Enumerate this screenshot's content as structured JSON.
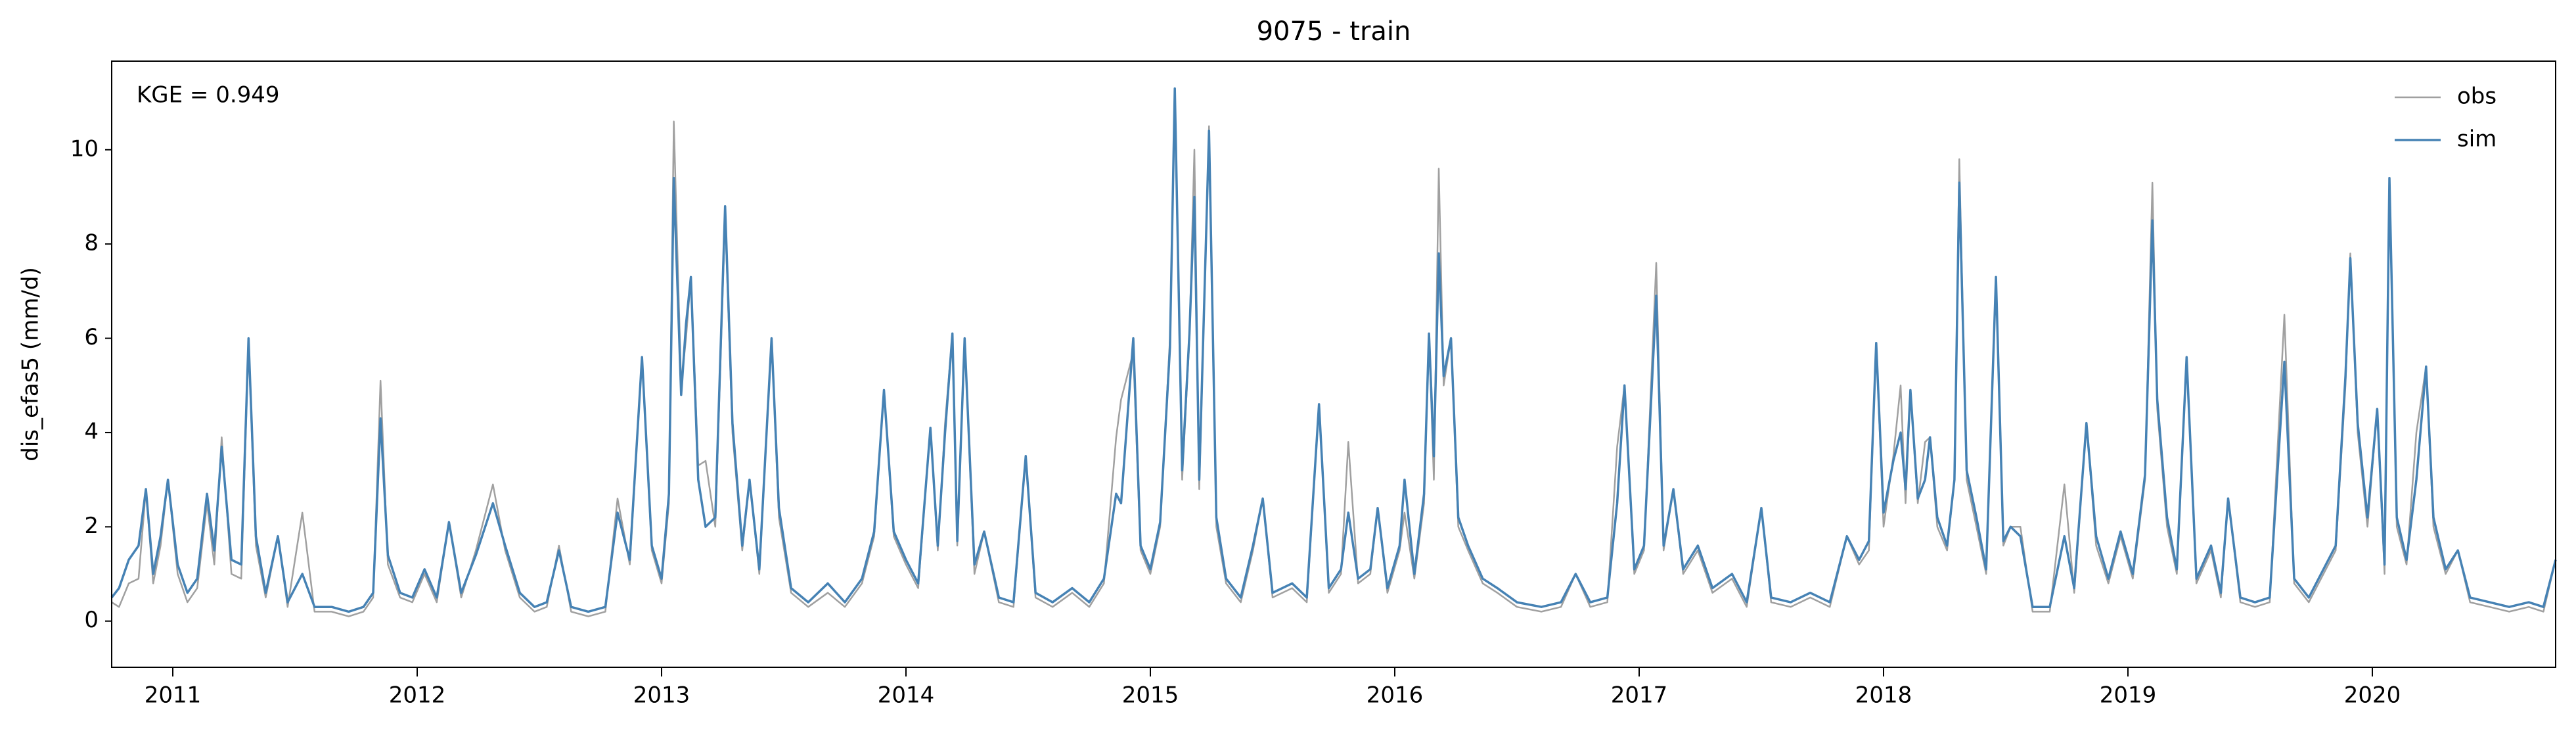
{
  "chart_data": {
    "type": "line",
    "title": "9075 - train",
    "ylabel": "dis_efas5 (mm/d)",
    "annotation": "KGE = 0.949",
    "legend": "upper right",
    "grid": false,
    "xlim": [
      2010.75,
      2020.75
    ],
    "xticks": [
      2011,
      2012,
      2013,
      2014,
      2015,
      2016,
      2017,
      2018,
      2019,
      2020
    ],
    "ylim": [
      -0.98,
      11.88
    ],
    "yticks": [
      0,
      2,
      4,
      6,
      8,
      10
    ],
    "x": [
      2010.75,
      2010.78,
      2010.82,
      2010.86,
      2010.89,
      2010.92,
      2010.95,
      2010.98,
      2011.02,
      2011.06,
      2011.1,
      2011.14,
      2011.17,
      2011.2,
      2011.24,
      2011.28,
      2011.31,
      2011.34,
      2011.38,
      2011.43,
      2011.47,
      2011.53,
      2011.58,
      2011.65,
      2011.72,
      2011.78,
      2011.82,
      2011.85,
      2011.88,
      2011.93,
      2011.98,
      2012.03,
      2012.08,
      2012.13,
      2012.18,
      2012.24,
      2012.31,
      2012.36,
      2012.42,
      2012.48,
      2012.53,
      2012.58,
      2012.63,
      2012.7,
      2012.77,
      2012.82,
      2012.87,
      2012.92,
      2012.96,
      2013.0,
      2013.03,
      2013.05,
      2013.08,
      2013.1,
      2013.12,
      2013.15,
      2013.18,
      2013.22,
      2013.26,
      2013.29,
      2013.33,
      2013.36,
      2013.4,
      2013.45,
      2013.48,
      2013.53,
      2013.6,
      2013.68,
      2013.75,
      2013.82,
      2013.87,
      2013.91,
      2013.95,
      2014.0,
      2014.05,
      2014.1,
      2014.13,
      2014.16,
      2014.19,
      2014.21,
      2014.24,
      2014.28,
      2014.32,
      2014.38,
      2014.44,
      2014.49,
      2014.53,
      2014.6,
      2014.68,
      2014.75,
      2014.81,
      2014.86,
      2014.88,
      2014.93,
      2014.96,
      2015.0,
      2015.04,
      2015.08,
      2015.1,
      2015.13,
      2015.16,
      2015.18,
      2015.2,
      2015.24,
      2015.27,
      2015.31,
      2015.37,
      2015.42,
      2015.46,
      2015.5,
      2015.58,
      2015.64,
      2015.69,
      2015.73,
      2015.78,
      2015.81,
      2015.85,
      2015.9,
      2015.93,
      2015.97,
      2016.02,
      2016.04,
      2016.08,
      2016.12,
      2016.14,
      2016.16,
      2016.18,
      2016.2,
      2016.23,
      2016.26,
      2016.3,
      2016.36,
      2016.42,
      2016.5,
      2016.6,
      2016.68,
      2016.74,
      2016.8,
      2016.87,
      2016.91,
      2016.94,
      2016.98,
      2017.02,
      2017.07,
      2017.1,
      2017.14,
      2017.18,
      2017.24,
      2017.3,
      2017.38,
      2017.44,
      2017.5,
      2017.54,
      2017.62,
      2017.7,
      2017.78,
      2017.85,
      2017.9,
      2017.94,
      2017.97,
      2018.0,
      2018.04,
      2018.07,
      2018.09,
      2018.11,
      2018.14,
      2018.17,
      2018.19,
      2018.22,
      2018.26,
      2018.29,
      2018.31,
      2018.34,
      2018.38,
      2018.42,
      2018.46,
      2018.49,
      2018.52,
      2018.56,
      2018.61,
      2018.68,
      2018.74,
      2018.78,
      2018.83,
      2018.87,
      2018.92,
      2018.97,
      2019.02,
      2019.07,
      2019.1,
      2019.12,
      2019.16,
      2019.2,
      2019.24,
      2019.28,
      2019.34,
      2019.38,
      2019.41,
      2019.46,
      2019.52,
      2019.58,
      2019.64,
      2019.68,
      2019.74,
      2019.8,
      2019.85,
      2019.89,
      2019.91,
      2019.94,
      2019.98,
      2020.02,
      2020.05,
      2020.07,
      2020.1,
      2020.14,
      2020.18,
      2020.22,
      2020.25,
      2020.3,
      2020.35,
      2020.4,
      2020.48,
      2020.56,
      2020.64,
      2020.7,
      2020.75
    ],
    "series": [
      {
        "name": "obs",
        "color": "#a0a0a0",
        "values": [
          0.4,
          0.3,
          0.8,
          0.9,
          2.8,
          0.8,
          1.6,
          3.0,
          1.0,
          0.4,
          0.7,
          2.5,
          1.2,
          3.9,
          1.0,
          0.9,
          5.9,
          1.6,
          0.5,
          1.8,
          0.3,
          2.3,
          0.2,
          0.2,
          0.1,
          0.2,
          0.5,
          5.1,
          1.2,
          0.5,
          0.4,
          1.0,
          0.4,
          2.1,
          0.5,
          1.5,
          2.9,
          1.5,
          0.5,
          0.2,
          0.3,
          1.6,
          0.2,
          0.1,
          0.2,
          2.6,
          1.2,
          5.6,
          1.5,
          0.8,
          2.5,
          10.6,
          5.0,
          6.0,
          7.3,
          3.3,
          3.4,
          2.0,
          8.6,
          4.0,
          1.5,
          3.0,
          1.0,
          6.0,
          2.2,
          0.6,
          0.3,
          0.6,
          0.3,
          0.8,
          1.8,
          4.9,
          1.8,
          1.2,
          0.7,
          4.1,
          1.5,
          4.2,
          6.1,
          1.6,
          6.0,
          1.0,
          1.9,
          0.4,
          0.3,
          3.5,
          0.5,
          0.3,
          0.6,
          0.3,
          0.8,
          3.9,
          4.7,
          5.7,
          1.5,
          1.0,
          2.0,
          6.0,
          11.2,
          3.0,
          6.0,
          10.0,
          2.8,
          10.5,
          2.0,
          0.8,
          0.4,
          1.5,
          2.6,
          0.5,
          0.7,
          0.4,
          4.6,
          0.6,
          1.0,
          3.8,
          0.8,
          1.0,
          2.4,
          0.6,
          1.5,
          2.3,
          0.9,
          2.5,
          6.1,
          3.0,
          9.6,
          5.0,
          6.0,
          2.0,
          1.5,
          0.8,
          0.6,
          0.3,
          0.2,
          0.3,
          1.0,
          0.3,
          0.4,
          3.7,
          5.0,
          1.0,
          1.5,
          7.6,
          1.5,
          2.8,
          1.0,
          1.5,
          0.6,
          0.9,
          0.3,
          2.4,
          0.4,
          0.3,
          0.5,
          0.3,
          1.8,
          1.2,
          1.5,
          5.9,
          2.0,
          3.5,
          5.0,
          2.5,
          4.9,
          2.5,
          3.8,
          3.9,
          2.0,
          1.5,
          3.0,
          9.8,
          3.0,
          2.0,
          1.0,
          7.3,
          1.6,
          2.0,
          2.0,
          0.2,
          0.2,
          2.9,
          0.6,
          4.2,
          1.6,
          0.8,
          1.8,
          0.9,
          3.0,
          9.3,
          4.5,
          2.0,
          1.0,
          5.6,
          0.8,
          1.5,
          0.5,
          2.6,
          0.4,
          0.3,
          0.4,
          6.5,
          0.8,
          0.4,
          1.0,
          1.5,
          5.0,
          7.8,
          4.0,
          2.0,
          4.5,
          1.0,
          9.4,
          2.0,
          1.2,
          4.0,
          5.4,
          2.0,
          1.0,
          1.5,
          0.4,
          0.3,
          0.2,
          0.3,
          0.2,
          1.3
        ]
      },
      {
        "name": "sim",
        "color": "#4682b4",
        "values": [
          0.5,
          0.7,
          1.3,
          1.6,
          2.8,
          1.0,
          1.8,
          3.0,
          1.2,
          0.6,
          0.9,
          2.7,
          1.5,
          3.7,
          1.3,
          1.2,
          6.0,
          1.8,
          0.6,
          1.8,
          0.4,
          1.0,
          0.3,
          0.3,
          0.2,
          0.3,
          0.6,
          4.3,
          1.4,
          0.6,
          0.5,
          1.1,
          0.5,
          2.1,
          0.6,
          1.4,
          2.5,
          1.6,
          0.6,
          0.3,
          0.4,
          1.5,
          0.3,
          0.2,
          0.3,
          2.3,
          1.3,
          5.6,
          1.6,
          0.9,
          2.7,
          9.4,
          4.8,
          6.3,
          7.3,
          3.0,
          2.0,
          2.2,
          8.8,
          4.2,
          1.6,
          3.0,
          1.1,
          6.0,
          2.4,
          0.7,
          0.4,
          0.8,
          0.4,
          0.9,
          1.9,
          4.9,
          1.9,
          1.3,
          0.8,
          4.1,
          1.6,
          4.0,
          6.1,
          1.7,
          6.0,
          1.2,
          1.9,
          0.5,
          0.4,
          3.5,
          0.6,
          0.4,
          0.7,
          0.4,
          0.9,
          2.7,
          2.5,
          6.0,
          1.6,
          1.1,
          2.1,
          5.8,
          11.3,
          3.2,
          6.1,
          9.0,
          3.0,
          10.4,
          2.2,
          0.9,
          0.5,
          1.6,
          2.6,
          0.6,
          0.8,
          0.5,
          4.6,
          0.7,
          1.1,
          2.3,
          0.9,
          1.1,
          2.4,
          0.7,
          1.6,
          3.0,
          1.0,
          2.7,
          6.1,
          3.5,
          7.8,
          5.2,
          6.0,
          2.2,
          1.6,
          0.9,
          0.7,
          0.4,
          0.3,
          0.4,
          1.0,
          0.4,
          0.5,
          2.5,
          5.0,
          1.1,
          1.6,
          6.9,
          1.6,
          2.8,
          1.1,
          1.6,
          0.7,
          1.0,
          0.4,
          2.4,
          0.5,
          0.4,
          0.6,
          0.4,
          1.8,
          1.3,
          1.7,
          5.9,
          2.3,
          3.4,
          4.0,
          2.8,
          4.9,
          2.6,
          3.0,
          3.9,
          2.2,
          1.6,
          3.0,
          9.3,
          3.2,
          2.2,
          1.1,
          7.3,
          1.7,
          2.0,
          1.8,
          0.3,
          0.3,
          1.8,
          0.7,
          4.2,
          1.8,
          0.9,
          1.9,
          1.0,
          3.1,
          8.5,
          4.7,
          2.2,
          1.1,
          5.6,
          0.9,
          1.6,
          0.6,
          2.6,
          0.5,
          0.4,
          0.5,
          5.5,
          0.9,
          0.5,
          1.1,
          1.6,
          5.2,
          7.7,
          4.2,
          2.2,
          4.5,
          1.2,
          9.4,
          2.2,
          1.3,
          3.0,
          5.4,
          2.2,
          1.1,
          1.5,
          0.5,
          0.4,
          0.3,
          0.4,
          0.3,
          1.3
        ]
      }
    ]
  }
}
